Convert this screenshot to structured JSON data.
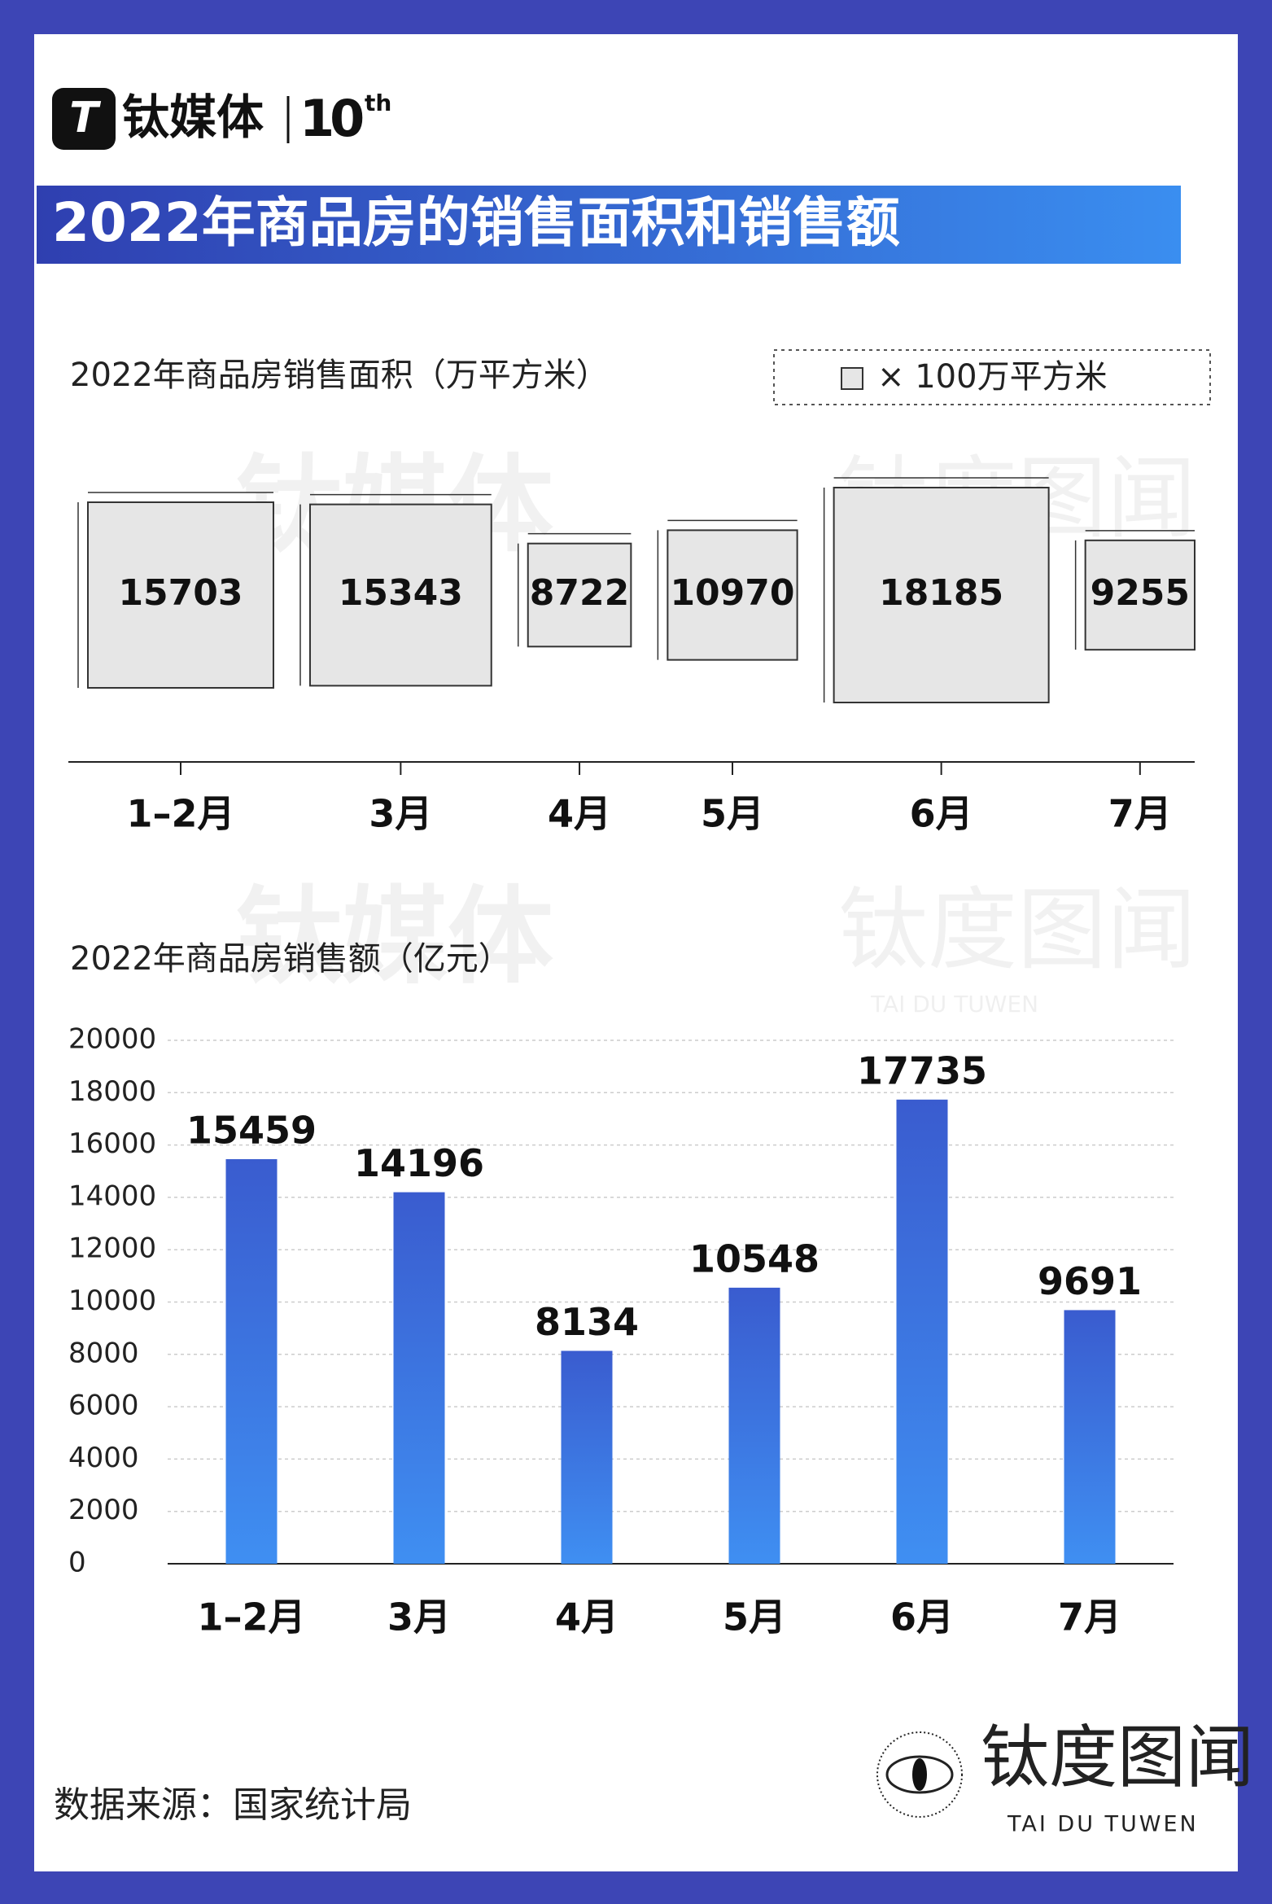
{
  "header": {
    "brand": "钛媒体",
    "anniversary": "10",
    "anniversary_suffix": "th",
    "title": "2022年商品房的销售面积和销售额"
  },
  "chart_data": [
    {
      "type": "square",
      "title": "2022年商品房销售面积（万平方米）",
      "legend_label": "× 100万平方米",
      "categories": [
        "1–2月",
        "3月",
        "4月",
        "5月",
        "6月",
        "7月"
      ],
      "values": [
        15703,
        15343,
        8722,
        10970,
        18185,
        9255
      ],
      "color": "#e6e6e6"
    },
    {
      "type": "bar",
      "title": "2022年商品房销售额（亿元）",
      "categories": [
        "1–2月",
        "3月",
        "4月",
        "5月",
        "6月",
        "7月"
      ],
      "values": [
        15459,
        14196,
        8134,
        10548,
        17735,
        9691
      ],
      "color": "#3b6fd9",
      "ylim": [
        0,
        20000
      ],
      "yticks": [
        0,
        2000,
        4000,
        6000,
        8000,
        10000,
        12000,
        14000,
        16000,
        18000,
        20000
      ],
      "grid": true
    }
  ],
  "footer": {
    "source": "数据来源：国家统计局",
    "brand": "钛度图闻",
    "brand_en": "TAI DU TUWEN"
  }
}
